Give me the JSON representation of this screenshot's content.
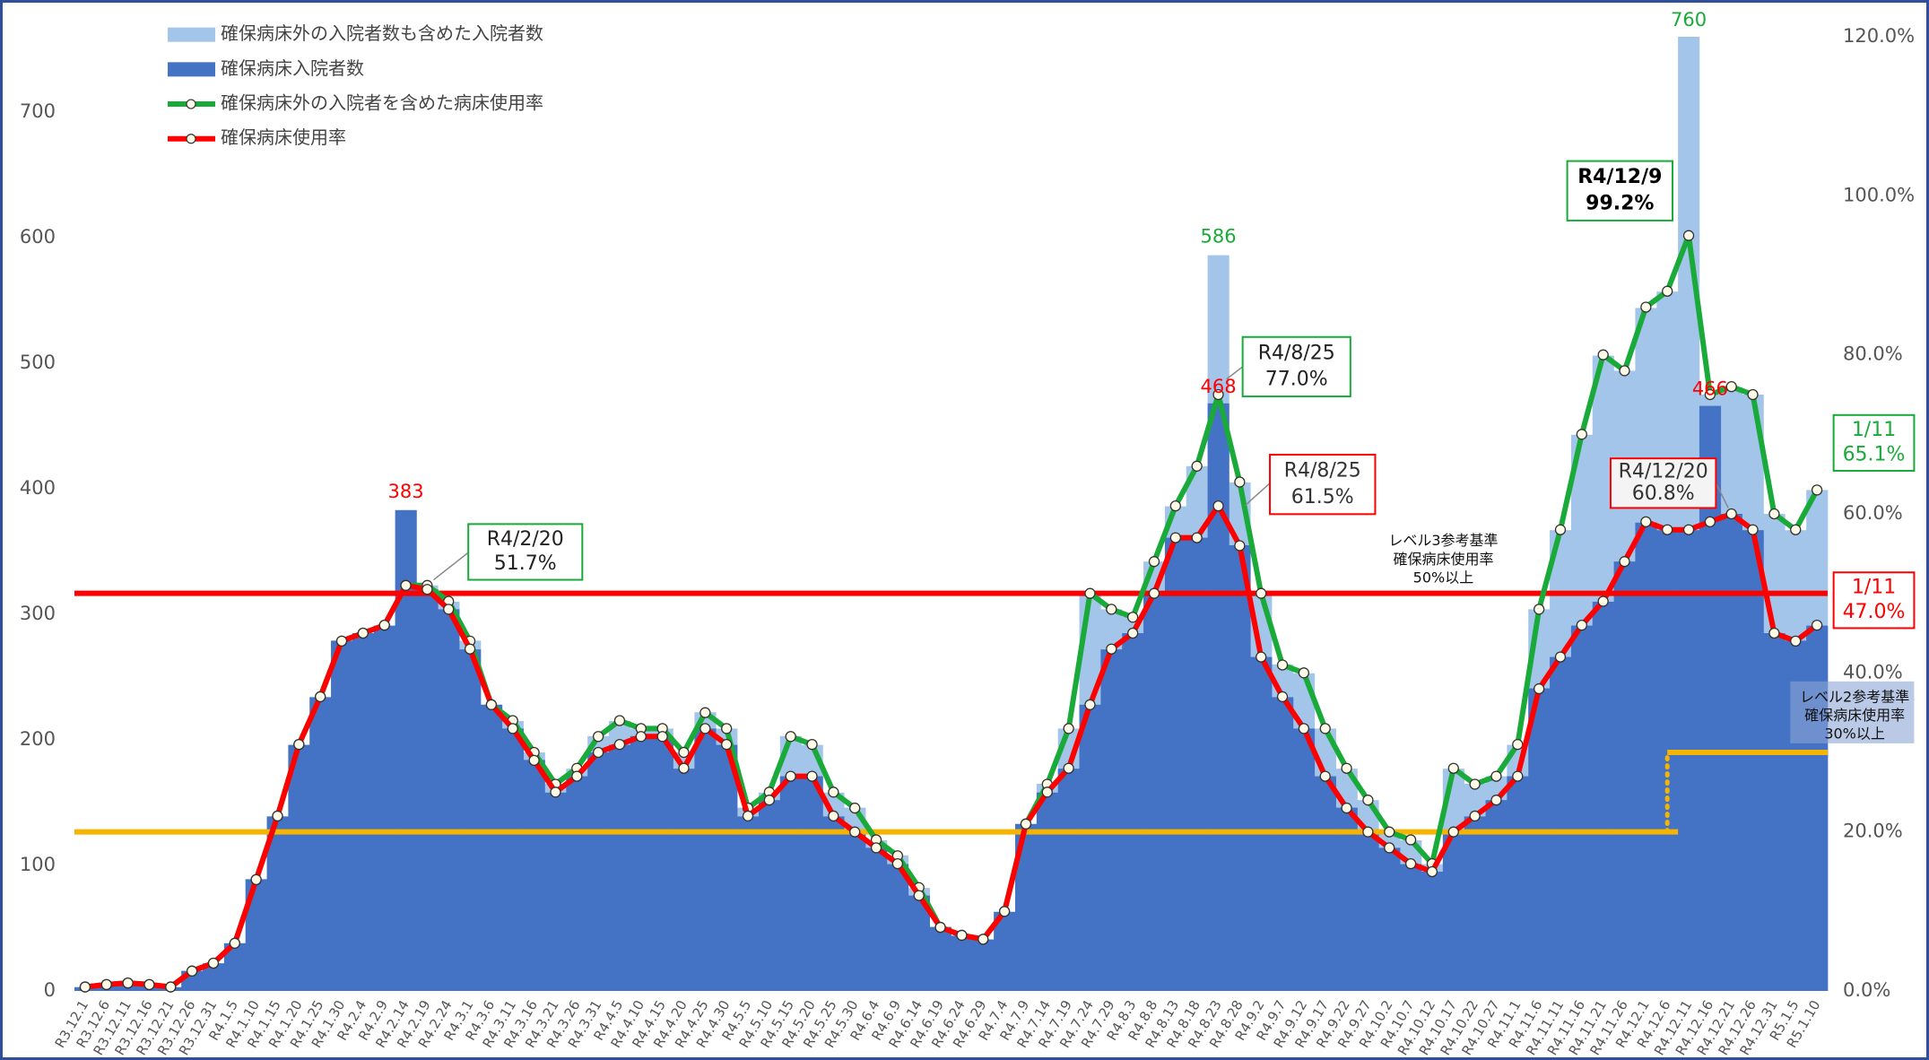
{
  "chart_data": {
    "type": "combo",
    "categories": [
      "R3.12.1",
      "R3.12.6",
      "R3.12.11",
      "R3.12.16",
      "R3.12.21",
      "R3.12.26",
      "R3.12.31",
      "R4.1.5",
      "R4.1.10",
      "R4.1.15",
      "R4.1.20",
      "R4.1.25",
      "R4.1.30",
      "R4.2.4",
      "R4.2.9",
      "R4.2.14",
      "R4.2.19",
      "R4.2.24",
      "R4.3.1",
      "R4.3.6",
      "R4.3.11",
      "R4.3.16",
      "R4.3.21",
      "R4.3.26",
      "R4.3.31",
      "R4.4.5",
      "R4.4.10",
      "R4.4.15",
      "R4.4.20",
      "R4.4.25",
      "R4.4.30",
      "R4.5.5",
      "R4.5.10",
      "R4.5.15",
      "R4.5.20",
      "R4.5.25",
      "R4.5.30",
      "R4.6.4",
      "R4.6.9",
      "R4.6.14",
      "R4.6.19",
      "R4.6.24",
      "R4.6.29",
      "R4.7.4",
      "R4.7.9",
      "R4.7.14",
      "R4.7.19",
      "R4.7.24",
      "R4.7.29",
      "R4.8.3",
      "R4.8.8",
      "R4.8.13",
      "R4.8.18",
      "R4.8.23",
      "R4.8.28",
      "R4.9.2",
      "R4.9.7",
      "R4.9.12",
      "R4.9.17",
      "R4.9.22",
      "R4.9.27",
      "R4.10.2",
      "R4.10.7",
      "R4.10.12",
      "R4.10.17",
      "R4.10.22",
      "R4.10.27",
      "R4.11.1",
      "R4.11.6",
      "R4.11.11",
      "R4.11.16",
      "R4.11.21",
      "R4.11.26",
      "R4.12.1",
      "R4.12.6",
      "R4.12.11",
      "R4.12.16",
      "R4.12.21",
      "R4.12.26",
      "R4.12.31",
      "R5.1.5",
      "R5.1.10"
    ],
    "series": [
      {
        "name": "確保病床外の入院者数も含めた入院者数",
        "kind": "bar",
        "color": "#a3c5ea",
        "values": [
          3,
          5,
          6,
          5,
          3,
          16,
          22,
          38,
          89,
          139,
          196,
          234,
          279,
          285,
          291,
          323,
          323,
          310,
          279,
          228,
          215,
          190,
          165,
          177,
          203,
          215,
          209,
          209,
          190,
          222,
          209,
          146,
          158,
          203,
          196,
          158,
          146,
          120,
          108,
          82,
          51,
          44,
          41,
          63,
          133,
          165,
          209,
          316,
          304,
          298,
          342,
          386,
          418,
          586,
          405,
          316,
          260,
          253,
          209,
          177,
          152,
          127,
          120,
          101,
          177,
          165,
          171,
          196,
          304,
          367,
          443,
          506,
          494,
          544,
          557,
          760,
          475,
          481,
          475,
          380,
          367,
          399
        ]
      },
      {
        "name": "確保病床入院者数",
        "kind": "bar",
        "color": "#4472c4",
        "values": [
          3,
          5,
          6,
          5,
          3,
          16,
          22,
          38,
          89,
          139,
          196,
          234,
          279,
          285,
          291,
          383,
          320,
          304,
          272,
          228,
          209,
          184,
          158,
          171,
          190,
          196,
          203,
          203,
          177,
          209,
          196,
          139,
          152,
          171,
          171,
          139,
          127,
          114,
          101,
          76,
          51,
          44,
          41,
          63,
          133,
          158,
          177,
          228,
          272,
          285,
          317,
          361,
          361,
          468,
          355,
          266,
          234,
          209,
          171,
          146,
          127,
          114,
          101,
          95,
          127,
          139,
          152,
          171,
          241,
          266,
          291,
          310,
          342,
          373,
          367,
          367,
          466,
          380,
          367,
          285,
          279,
          291
        ]
      },
      {
        "name": "確保病床外の入院者を含めた病床使用率",
        "kind": "line",
        "axis": "y2",
        "color": "#1aaa3a",
        "values": [
          0.5,
          0.8,
          1,
          0.8,
          0.5,
          2.5,
          3.5,
          6,
          14,
          22,
          31,
          37,
          44,
          45,
          46,
          51,
          51,
          49,
          44,
          36,
          34,
          30,
          26,
          28,
          32,
          34,
          33,
          33,
          30,
          35,
          33,
          23,
          25,
          32,
          31,
          25,
          23,
          19,
          17,
          13,
          8,
          7,
          6.5,
          10,
          21,
          26,
          33,
          50,
          48,
          47,
          54,
          61,
          66,
          75,
          64,
          50,
          41,
          40,
          33,
          28,
          24,
          20,
          19,
          16,
          28,
          26,
          27,
          31,
          48,
          58,
          70,
          80,
          78,
          86,
          88,
          95,
          75,
          76,
          75,
          60,
          58,
          63
        ]
      },
      {
        "name": "確保病床使用率",
        "kind": "line",
        "axis": "y2",
        "color": "#ff0000",
        "values": [
          0.5,
          0.8,
          1,
          0.8,
          0.5,
          2.5,
          3.5,
          6,
          14,
          22,
          31,
          37,
          44,
          45,
          46,
          51,
          50.5,
          48,
          43,
          36,
          33,
          29,
          25,
          27,
          30,
          31,
          32,
          32,
          28,
          33,
          31,
          22,
          24,
          27,
          27,
          22,
          20,
          18,
          16,
          12,
          8,
          7,
          6.5,
          10,
          21,
          25,
          28,
          36,
          43,
          45,
          50,
          57,
          57,
          61,
          56,
          42,
          37,
          33,
          27,
          23,
          20,
          18,
          16,
          15,
          20,
          22,
          24,
          27,
          38,
          42,
          46,
          49,
          54,
          59,
          58,
          58,
          59,
          60,
          58,
          45,
          44,
          46
        ]
      }
    ],
    "ylim": [
      0,
      760
    ],
    "yticks": [
      0,
      100,
      200,
      300,
      400,
      500,
      600,
      700
    ],
    "y2lim": [
      0,
      120
    ],
    "y2ticks": [
      {
        "value": 0,
        "label": "0.0%"
      },
      {
        "value": 20,
        "label": "20.0%"
      },
      {
        "value": 40,
        "label": "40.0%"
      },
      {
        "value": 60,
        "label": "60.0%"
      },
      {
        "value": 80,
        "label": "80.0%"
      },
      {
        "value": 100,
        "label": "100.0%"
      },
      {
        "value": 120,
        "label": "120.0%"
      }
    ],
    "grid": false,
    "legend": "top-left",
    "peak_labels": [
      {
        "text": "383",
        "series": 1,
        "index": 15,
        "color": "#ff0000"
      },
      {
        "text": "586",
        "series": 0,
        "index": 53,
        "color": "#1aaa3a"
      },
      {
        "text": "468",
        "series": 1,
        "index": 53,
        "color": "#ff0000"
      },
      {
        "text": "760",
        "series": 0,
        "index": 75,
        "color": "#1aaa3a"
      },
      {
        "text": "466",
        "series": 1,
        "index": 76,
        "color": "#ff0000"
      }
    ],
    "annotations": [
      {
        "lines": [
          "R4/2/20",
          "51.7%"
        ],
        "color": "#1aaa3a",
        "text_color": "#222222",
        "bold": false
      },
      {
        "lines": [
          "R4/8/25",
          "77.0%"
        ],
        "color": "#1aaa3a",
        "text_color": "#222222",
        "bold": false
      },
      {
        "lines": [
          "R4/8/25",
          "61.5%"
        ],
        "color": "#ff0000",
        "text_color": "#333333",
        "bold": false
      },
      {
        "lines": [
          "R4/12/9",
          "99.2%"
        ],
        "color": "#1aaa3a",
        "text_color": "#000000",
        "bold": true
      },
      {
        "lines": [
          "R4/12/20",
          "60.8%"
        ],
        "color": "#ff0000",
        "text_color": "#333333",
        "bold": false
      },
      {
        "lines": [
          "1/11",
          "65.1%"
        ],
        "color": "#1aaa3a",
        "text_color": "#1aaa3a",
        "bold": false
      },
      {
        "lines": [
          "1/11",
          "47.0%"
        ],
        "color": "#ff0000",
        "text_color": "#ff0000",
        "bold": false
      }
    ],
    "reference_lines": [
      {
        "value": 50,
        "color": "#ff0000",
        "from": "R3.12.1",
        "to": "R5.1.10"
      },
      {
        "value": 20,
        "color": "#f5b400",
        "from": "R3.12.1",
        "to": "R4.12.6"
      },
      {
        "value": 30,
        "color": "#f5b400",
        "from": "R4.12.6",
        "to": "R5.1.10"
      }
    ],
    "level_notes": [
      {
        "lines": [
          "レベル3参考基準",
          "確保病床使用率",
          "50%以上"
        ]
      },
      {
        "lines": [
          "レベル2参考基準",
          "確保病床使用率",
          "30%以上"
        ]
      }
    ]
  }
}
